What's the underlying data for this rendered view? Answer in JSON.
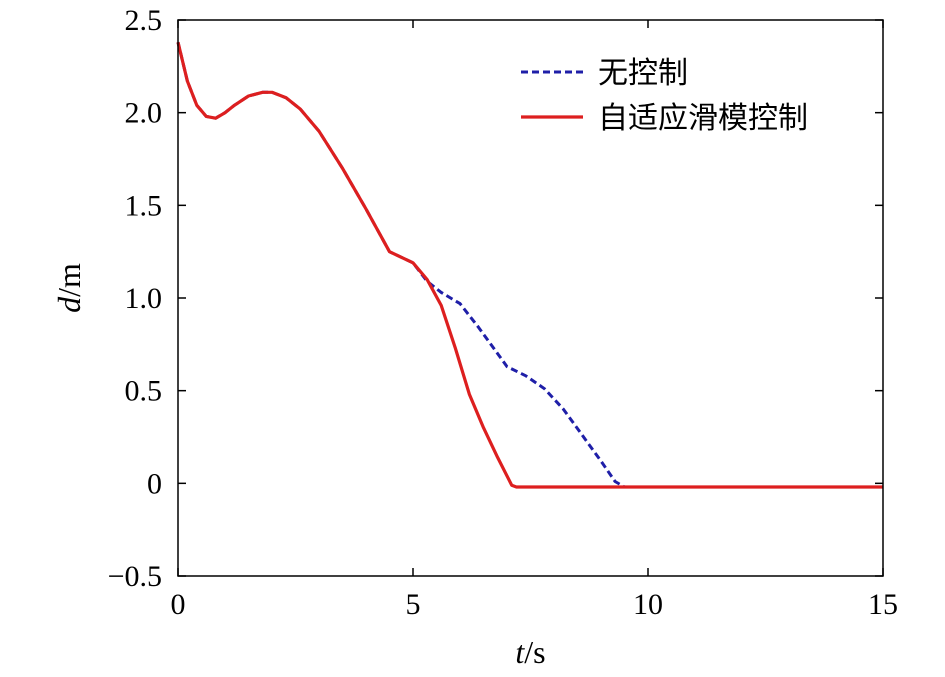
{
  "chart_data": {
    "type": "line",
    "xlabel": {
      "italic": "t",
      "rest": "/s"
    },
    "ylabel": {
      "italic": "d",
      "rest": "/m"
    },
    "xlim": [
      0,
      15
    ],
    "ylim": [
      -0.5,
      2.5
    ],
    "xticks": [
      0,
      5,
      10,
      15
    ],
    "xtick_labels": [
      "0",
      "5",
      "10",
      "15"
    ],
    "yticks": [
      -0.5,
      0,
      0.5,
      1.0,
      1.5,
      2.0,
      2.5
    ],
    "ytick_labels": [
      "−0.5",
      "0",
      "0.5",
      "1.0",
      "1.5",
      "2.0",
      "2.5"
    ],
    "grid": false,
    "legend_position": "top-right",
    "series": [
      {
        "name": "无控制",
        "color": "#1f1fa8",
        "style": "dashed",
        "x": [
          0,
          0.2,
          0.4,
          0.6,
          0.8,
          1.0,
          1.2,
          1.5,
          1.8,
          2.0,
          2.3,
          2.6,
          3.0,
          3.5,
          4.0,
          4.5,
          5.0,
          5.3,
          5.6,
          6.0,
          6.4,
          6.8,
          7.0,
          7.4,
          7.8,
          8.2,
          8.6,
          9.0,
          9.3,
          9.5,
          15
        ],
        "y": [
          2.38,
          2.17,
          2.04,
          1.98,
          1.97,
          2.0,
          2.04,
          2.09,
          2.11,
          2.11,
          2.08,
          2.02,
          1.9,
          1.7,
          1.48,
          1.25,
          1.19,
          1.09,
          1.03,
          0.97,
          0.84,
          0.7,
          0.63,
          0.58,
          0.51,
          0.4,
          0.26,
          0.12,
          0.01,
          -0.02,
          -0.02
        ]
      },
      {
        "name": "自适应滑模控制",
        "color": "#dd1f1f",
        "style": "solid",
        "x": [
          0,
          0.2,
          0.4,
          0.6,
          0.8,
          1.0,
          1.2,
          1.5,
          1.8,
          2.0,
          2.3,
          2.6,
          3.0,
          3.5,
          4.0,
          4.5,
          5.0,
          5.3,
          5.6,
          5.9,
          6.2,
          6.5,
          6.8,
          7.1,
          7.2,
          15
        ],
        "y": [
          2.38,
          2.17,
          2.04,
          1.98,
          1.97,
          2.0,
          2.04,
          2.09,
          2.11,
          2.11,
          2.08,
          2.02,
          1.9,
          1.7,
          1.48,
          1.25,
          1.19,
          1.1,
          0.96,
          0.73,
          0.48,
          0.3,
          0.14,
          -0.01,
          -0.02,
          -0.02
        ]
      }
    ]
  }
}
